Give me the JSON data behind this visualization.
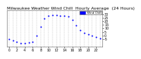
{
  "title": "Milwaukee Weather Wind Chill  Hourly Average  (24 Hours)",
  "hours": [
    0,
    1,
    2,
    3,
    4,
    5,
    6,
    7,
    8,
    9,
    10,
    11,
    12,
    13,
    14,
    15,
    16,
    17,
    18,
    19,
    20,
    21,
    22,
    23
  ],
  "wind_chill": [
    -5,
    -7,
    -9,
    -11,
    -11,
    -10,
    -9,
    0,
    12,
    24,
    28,
    29,
    29,
    28,
    28,
    27,
    22,
    14,
    8,
    4,
    2,
    0,
    -2,
    -4
  ],
  "dot_color": "#0000ff",
  "background_color": "#ffffff",
  "grid_color": "#999999",
  "legend_box_color": "#0000ff",
  "legend_text": "Wind Chill",
  "ylim": [
    -15,
    35
  ],
  "xlim": [
    -0.5,
    23.5
  ],
  "yticks": [
    -5,
    0,
    5,
    10,
    15,
    20,
    25,
    30
  ],
  "xtick_positions": [
    0,
    2,
    4,
    6,
    8,
    10,
    12,
    14,
    16,
    18,
    20,
    22
  ],
  "xtick_labels": [
    "0",
    "2",
    "4",
    "6",
    "8",
    "10",
    "12",
    "14",
    "16",
    "18",
    "20",
    "22"
  ],
  "all_xticks": [
    0,
    1,
    2,
    3,
    4,
    5,
    6,
    7,
    8,
    9,
    10,
    11,
    12,
    13,
    14,
    15,
    16,
    17,
    18,
    19,
    20,
    21,
    22,
    23
  ],
  "title_fontsize": 4.5,
  "tick_fontsize": 3.5,
  "dot_size": 1.5
}
